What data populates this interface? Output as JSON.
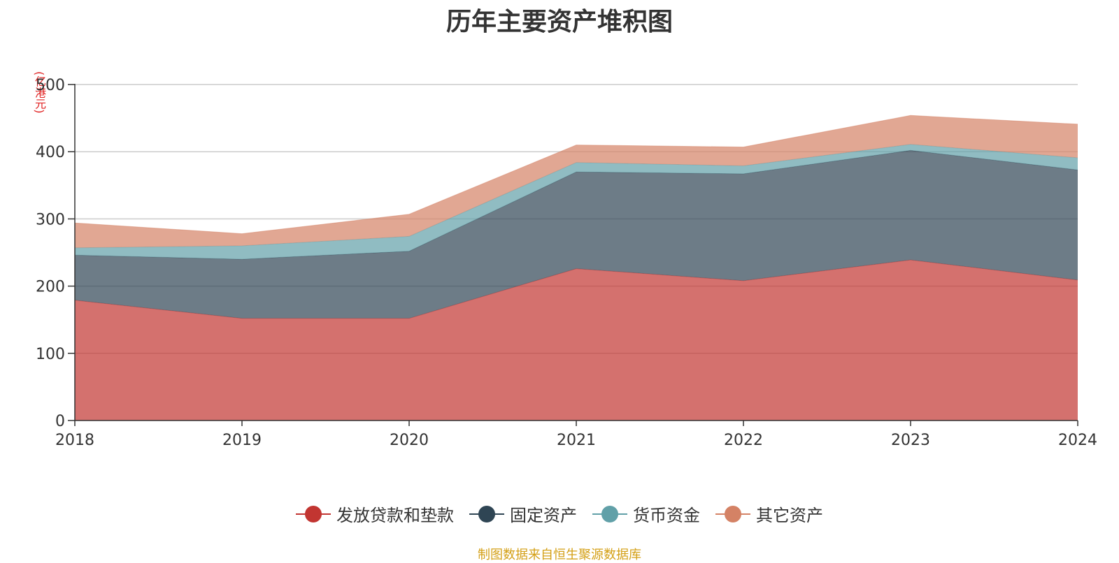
{
  "chart_data": {
    "type": "area",
    "stacked": true,
    "title": "历年主要资产堆积图",
    "ylabel": "(亿港元)",
    "xlabel": "",
    "categories": [
      "2018",
      "2019",
      "2020",
      "2021",
      "2022",
      "2023",
      "2024"
    ],
    "ylim": [
      0,
      500
    ],
    "yticks": [
      "0",
      "100",
      "200",
      "300",
      "400",
      "500"
    ],
    "grid": true,
    "legend_position": "bottom",
    "series": [
      {
        "name": "发放贷款和垫款",
        "color": "#c23531",
        "values": [
          179,
          152,
          152,
          226,
          208,
          239,
          209
        ]
      },
      {
        "name": "固定资产",
        "color": "#2f4554",
        "values": [
          67,
          88,
          100,
          144,
          159,
          163,
          164
        ]
      },
      {
        "name": "货币资金",
        "color": "#61a0a8",
        "values": [
          11,
          20,
          22,
          14,
          12,
          9,
          18
        ]
      },
      {
        "name": "其它资产",
        "color": "#d48265",
        "values": [
          37,
          18,
          33,
          26,
          28,
          43,
          50
        ]
      }
    ]
  },
  "source_text": "制图数据来自恒生聚源数据库"
}
